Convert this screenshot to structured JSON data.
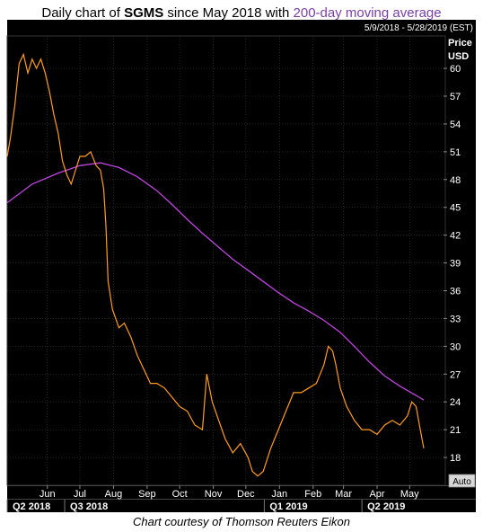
{
  "title": {
    "prefix": "Daily chart of ",
    "ticker": "SGMS",
    "middle": " since May 2018 with ",
    "ma": "200-day moving average"
  },
  "date_range": "5/9/2018 - 5/28/2019 (EST)",
  "price_label": "Price",
  "currency_label": "USD",
  "auto_label": "Auto",
  "caption": "Chart courtesy of Thomson Reuters Eikon",
  "colors": {
    "background": "#000000",
    "price": "#ff9d1e",
    "ma": "#c045e0",
    "grid": "#3a3a3a",
    "axis_text": "#ffffff"
  },
  "chart_data": {
    "type": "line",
    "x_range": [
      "2018-05-09",
      "2019-05-28"
    ],
    "ylim": [
      15,
      63.5
    ],
    "y_ticks": [
      18,
      21,
      24,
      27,
      30,
      33,
      36,
      39,
      42,
      45,
      48,
      51,
      54,
      57,
      60
    ],
    "grid": true,
    "month_ticks": [
      {
        "label": "Jun",
        "date": "2018-06-15"
      },
      {
        "label": "Jul",
        "date": "2018-07-15"
      },
      {
        "label": "Aug",
        "date": "2018-08-15"
      },
      {
        "label": "Sep",
        "date": "2018-09-15"
      },
      {
        "label": "Oct",
        "date": "2018-10-15"
      },
      {
        "label": "Nov",
        "date": "2018-11-15"
      },
      {
        "label": "Dec",
        "date": "2018-12-15"
      },
      {
        "label": "Jan",
        "date": "2019-01-15"
      },
      {
        "label": "Feb",
        "date": "2019-02-15"
      },
      {
        "label": "Mar",
        "date": "2019-03-15"
      },
      {
        "label": "Apr",
        "date": "2019-04-15"
      },
      {
        "label": "May",
        "date": "2019-05-15"
      }
    ],
    "quarter_ticks": [
      {
        "label": "Q2 2018",
        "date": "2018-04-01"
      },
      {
        "label": "Q3 2018",
        "date": "2018-07-01"
      },
      {
        "label": "Q1 2019",
        "date": "2019-01-01"
      },
      {
        "label": "Q2 2019",
        "date": "2019-04-01"
      }
    ],
    "series": [
      {
        "name": "SGMS",
        "x": [
          "2018-05-09",
          "2018-05-12",
          "2018-05-16",
          "2018-05-20",
          "2018-05-24",
          "2018-05-28",
          "2018-06-01",
          "2018-06-05",
          "2018-06-09",
          "2018-06-13",
          "2018-06-17",
          "2018-06-21",
          "2018-06-25",
          "2018-06-29",
          "2018-07-03",
          "2018-07-07",
          "2018-07-11",
          "2018-07-15",
          "2018-07-20",
          "2018-07-25",
          "2018-07-30",
          "2018-08-03",
          "2018-08-06",
          "2018-08-08",
          "2018-08-10",
          "2018-08-14",
          "2018-08-20",
          "2018-08-25",
          "2018-08-31",
          "2018-09-06",
          "2018-09-12",
          "2018-09-18",
          "2018-09-24",
          "2018-10-01",
          "2018-10-08",
          "2018-10-15",
          "2018-10-22",
          "2018-10-29",
          "2018-11-05",
          "2018-11-09",
          "2018-11-14",
          "2018-11-20",
          "2018-11-26",
          "2018-12-03",
          "2018-12-10",
          "2018-12-17",
          "2018-12-21",
          "2018-12-26",
          "2018-12-31",
          "2019-01-07",
          "2019-01-14",
          "2019-01-21",
          "2019-01-28",
          "2019-02-04",
          "2019-02-11",
          "2019-02-18",
          "2019-02-25",
          "2019-03-01",
          "2019-03-05",
          "2019-03-08",
          "2019-03-12",
          "2019-03-18",
          "2019-03-25",
          "2019-04-01",
          "2019-04-08",
          "2019-04-15",
          "2019-04-22",
          "2019-04-29",
          "2019-05-06",
          "2019-05-13",
          "2019-05-17",
          "2019-05-21",
          "2019-05-24",
          "2019-05-28"
        ],
        "y": [
          50.5,
          52.5,
          56,
          60.5,
          61.5,
          59.5,
          61,
          60,
          61,
          59.5,
          57.5,
          55,
          53,
          50,
          48.5,
          47.5,
          49,
          50.5,
          50.5,
          51,
          49.5,
          49,
          47,
          43,
          37,
          34,
          32,
          32.5,
          31,
          29,
          27.5,
          26,
          26,
          25.5,
          24.5,
          23.5,
          23,
          21.5,
          21,
          27,
          24,
          22,
          20,
          18.5,
          19.5,
          18,
          16.5,
          16,
          16.5,
          19,
          21,
          23,
          25,
          25,
          25.5,
          26,
          28,
          30,
          29.5,
          28,
          25.5,
          23.5,
          22,
          21,
          21,
          20.5,
          21.5,
          22,
          21.5,
          22.5,
          24,
          23.5,
          21.5,
          19
        ]
      },
      {
        "name": "200-day moving average",
        "x": [
          "2018-05-09",
          "2018-06-01",
          "2018-06-25",
          "2018-07-15",
          "2018-08-03",
          "2018-08-20",
          "2018-09-06",
          "2018-09-24",
          "2018-10-08",
          "2018-10-22",
          "2018-11-05",
          "2018-11-20",
          "2018-12-03",
          "2018-12-17",
          "2018-12-31",
          "2019-01-14",
          "2019-01-28",
          "2019-02-11",
          "2019-02-25",
          "2019-03-12",
          "2019-03-25",
          "2019-04-08",
          "2019-04-22",
          "2019-05-06",
          "2019-05-21",
          "2019-05-28"
        ],
        "y": [
          45.5,
          47.5,
          48.7,
          49.5,
          49.8,
          49.3,
          48.3,
          46.8,
          45.3,
          43.7,
          42.2,
          40.7,
          39.4,
          38.2,
          37,
          35.8,
          34.7,
          33.8,
          32.8,
          31.5,
          30,
          28.3,
          26.8,
          25.7,
          24.7,
          24.2
        ]
      }
    ]
  }
}
